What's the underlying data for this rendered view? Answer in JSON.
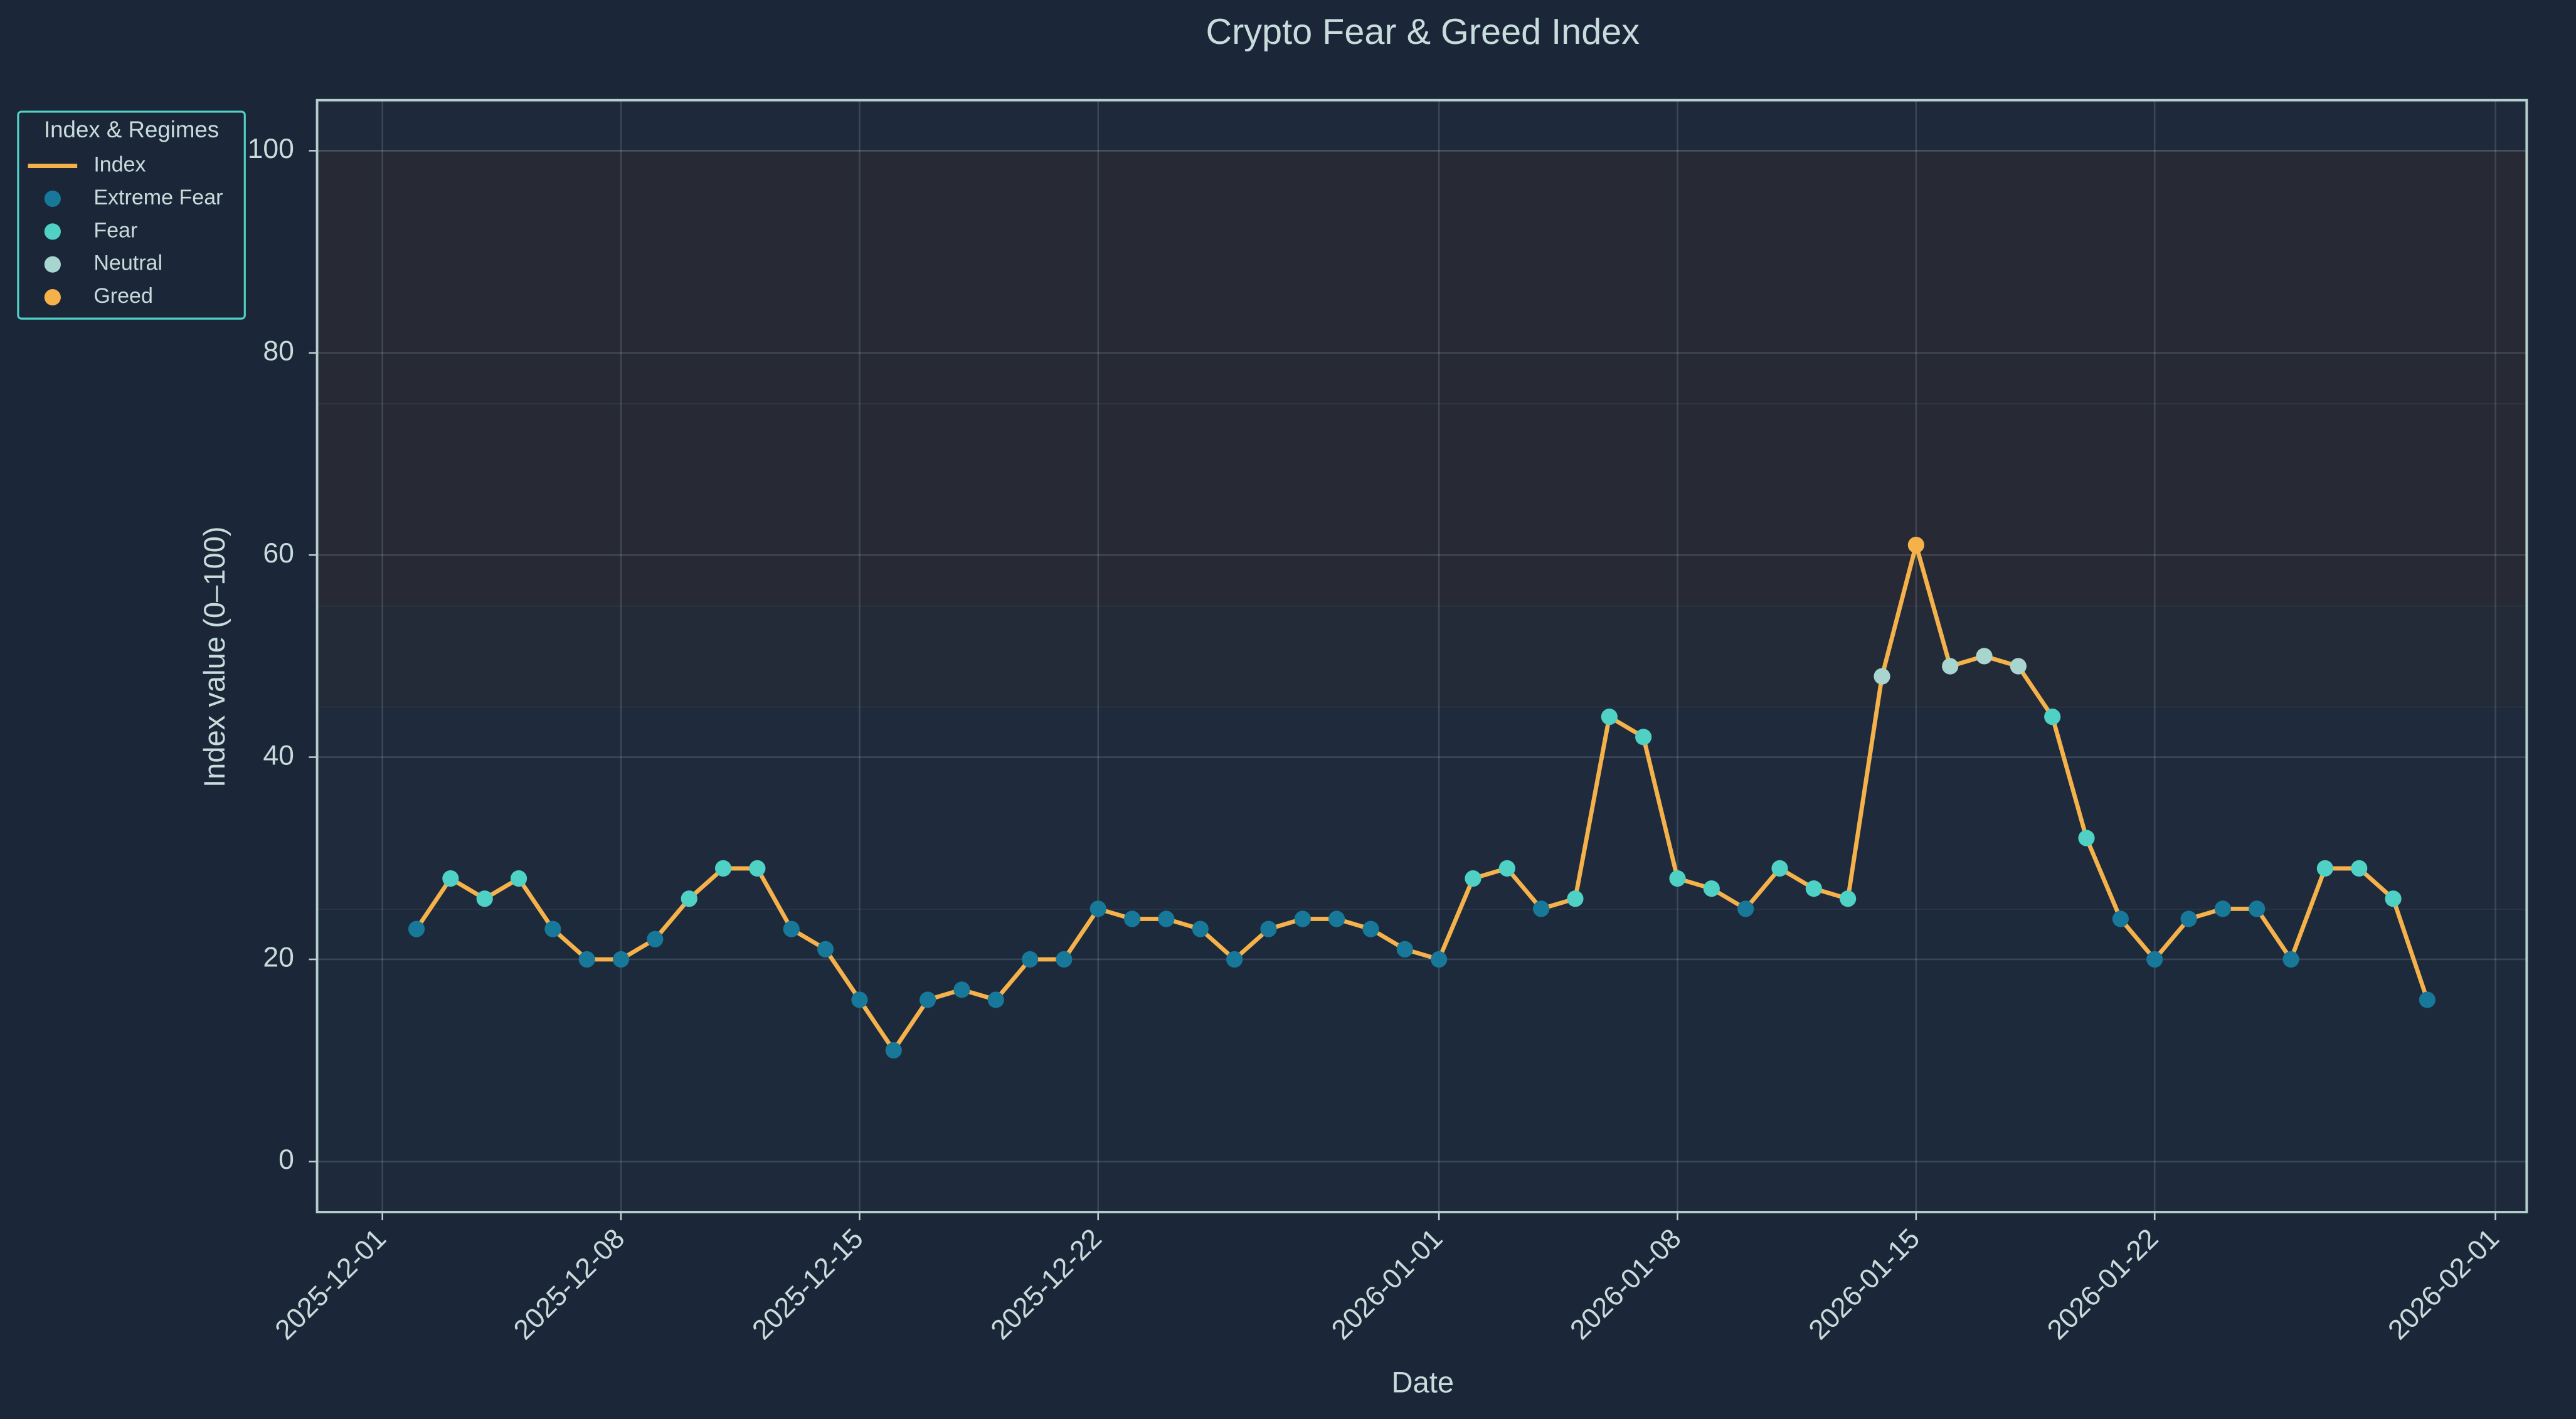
{
  "chart_data": {
    "type": "line",
    "title": "Crypto Fear & Greed Index",
    "x_label": "Date",
    "y_label": "Index value (0–100)",
    "xlim": [
      "2025-11-29T02:00",
      "2026-02-01T22:00"
    ],
    "xticks": [
      "2025-12-01",
      "2025-12-08",
      "2025-12-15",
      "2025-12-22",
      "2026-01-01",
      "2026-01-08",
      "2026-01-15",
      "2026-01-22",
      "2026-02-01"
    ],
    "ylim": [
      -5,
      105
    ],
    "yticks": [
      0,
      20,
      40,
      60,
      80,
      100
    ],
    "grid": true,
    "legend_title": "Index & Regimes",
    "legend_position": "upper left outside",
    "regime_bands": [
      {
        "from": 0,
        "to": 25,
        "color": "#1c2a3b"
      },
      {
        "from": 25,
        "to": 45,
        "color": "#1f2b3c"
      },
      {
        "from": 45,
        "to": 55,
        "color": "#232b39"
      },
      {
        "from": 55,
        "to": 75,
        "color": "#272a35"
      },
      {
        "from": 75,
        "to": 100,
        "color": "#272a35"
      }
    ],
    "series": [
      {
        "name": "Index",
        "type": "line",
        "color": "#f6b24a",
        "x": [
          "2025-12-02",
          "2025-12-03",
          "2025-12-04",
          "2025-12-05",
          "2025-12-06",
          "2025-12-07",
          "2025-12-08",
          "2025-12-09",
          "2025-12-10",
          "2025-12-11",
          "2025-12-12",
          "2025-12-13",
          "2025-12-14",
          "2025-12-15",
          "2025-12-16",
          "2025-12-17",
          "2025-12-18",
          "2025-12-19",
          "2025-12-20",
          "2025-12-21",
          "2025-12-22",
          "2025-12-23",
          "2025-12-24",
          "2025-12-25",
          "2025-12-26",
          "2025-12-27",
          "2025-12-28",
          "2025-12-29",
          "2025-12-30",
          "2025-12-31",
          "2026-01-01",
          "2026-01-02",
          "2026-01-03",
          "2026-01-04",
          "2026-01-05",
          "2026-01-06",
          "2026-01-07",
          "2026-01-08",
          "2026-01-09",
          "2026-01-10",
          "2026-01-11",
          "2026-01-12",
          "2026-01-13",
          "2026-01-14",
          "2026-01-15",
          "2026-01-16",
          "2026-01-17",
          "2026-01-18",
          "2026-01-19",
          "2026-01-20",
          "2026-01-21",
          "2026-01-22",
          "2026-01-23",
          "2026-01-24",
          "2026-01-25",
          "2026-01-26",
          "2026-01-27",
          "2026-01-28",
          "2026-01-29",
          "2026-01-30"
        ],
        "values": [
          23,
          28,
          26,
          28,
          23,
          20,
          20,
          22,
          26,
          29,
          29,
          23,
          21,
          16,
          11,
          16,
          17,
          16,
          20,
          20,
          25,
          24,
          24,
          23,
          20,
          23,
          24,
          24,
          23,
          21,
          20,
          28,
          29,
          25,
          26,
          44,
          42,
          28,
          27,
          25,
          29,
          27,
          26,
          48,
          61,
          49,
          50,
          49,
          44,
          32,
          24,
          20,
          24,
          25,
          25,
          20,
          29,
          29,
          26,
          16
        ]
      },
      {
        "name": "Extreme Fear",
        "type": "scatter",
        "color": "#17789a",
        "x": [
          "2025-12-02",
          "2025-12-06",
          "2025-12-07",
          "2025-12-08",
          "2025-12-09",
          "2025-12-13",
          "2025-12-14",
          "2025-12-15",
          "2025-12-16",
          "2025-12-17",
          "2025-12-18",
          "2025-12-19",
          "2025-12-20",
          "2025-12-21",
          "2025-12-22",
          "2025-12-23",
          "2025-12-24",
          "2025-12-25",
          "2025-12-26",
          "2025-12-27",
          "2025-12-28",
          "2025-12-29",
          "2025-12-30",
          "2025-12-31",
          "2026-01-01",
          "2026-01-04",
          "2026-01-10",
          "2026-01-21",
          "2026-01-22",
          "2026-01-23",
          "2026-01-24",
          "2026-01-25",
          "2026-01-26",
          "2026-01-30"
        ],
        "values": [
          23,
          23,
          20,
          20,
          22,
          23,
          21,
          16,
          11,
          16,
          17,
          16,
          20,
          20,
          25,
          24,
          24,
          23,
          20,
          23,
          24,
          24,
          23,
          21,
          20,
          25,
          25,
          24,
          20,
          24,
          25,
          25,
          20,
          16
        ]
      },
      {
        "name": "Fear",
        "type": "scatter",
        "color": "#4fd1c5",
        "x": [
          "2025-12-03",
          "2025-12-04",
          "2025-12-05",
          "2025-12-10",
          "2025-12-11",
          "2025-12-12",
          "2026-01-02",
          "2026-01-03",
          "2026-01-05",
          "2026-01-06",
          "2026-01-07",
          "2026-01-08",
          "2026-01-09",
          "2026-01-11",
          "2026-01-12",
          "2026-01-13",
          "2026-01-19",
          "2026-01-20",
          "2026-01-27",
          "2026-01-28",
          "2026-01-29"
        ],
        "values": [
          28,
          26,
          28,
          26,
          29,
          29,
          28,
          29,
          26,
          44,
          42,
          28,
          27,
          29,
          27,
          26,
          44,
          32,
          29,
          29,
          26
        ]
      },
      {
        "name": "Neutral",
        "type": "scatter",
        "color": "#a8d5cf",
        "x": [
          "2026-01-14",
          "2026-01-16",
          "2026-01-17",
          "2026-01-18"
        ],
        "values": [
          48,
          49,
          50,
          49
        ]
      },
      {
        "name": "Greed",
        "type": "scatter",
        "color": "#f6b24a",
        "x": [
          "2026-01-15"
        ],
        "values": [
          61
        ]
      }
    ]
  }
}
